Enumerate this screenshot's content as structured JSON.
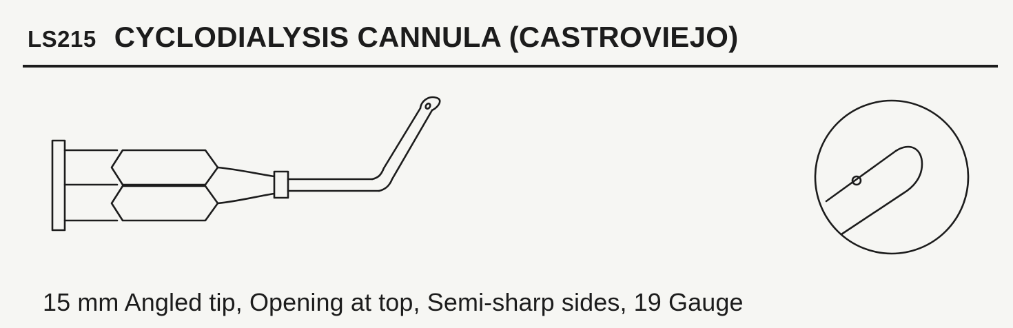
{
  "header": {
    "product_code": "LS215",
    "product_name": "CYCLODIALYSIS CANNULA (CASTROVIEJO)"
  },
  "illustration": {
    "main_icon": "angled-cannula-drawing-icon",
    "detail_icon": "cannula-tip-detail-icon"
  },
  "description": "15 mm Angled tip, Opening at top, Semi-sharp sides, 19 Gauge"
}
